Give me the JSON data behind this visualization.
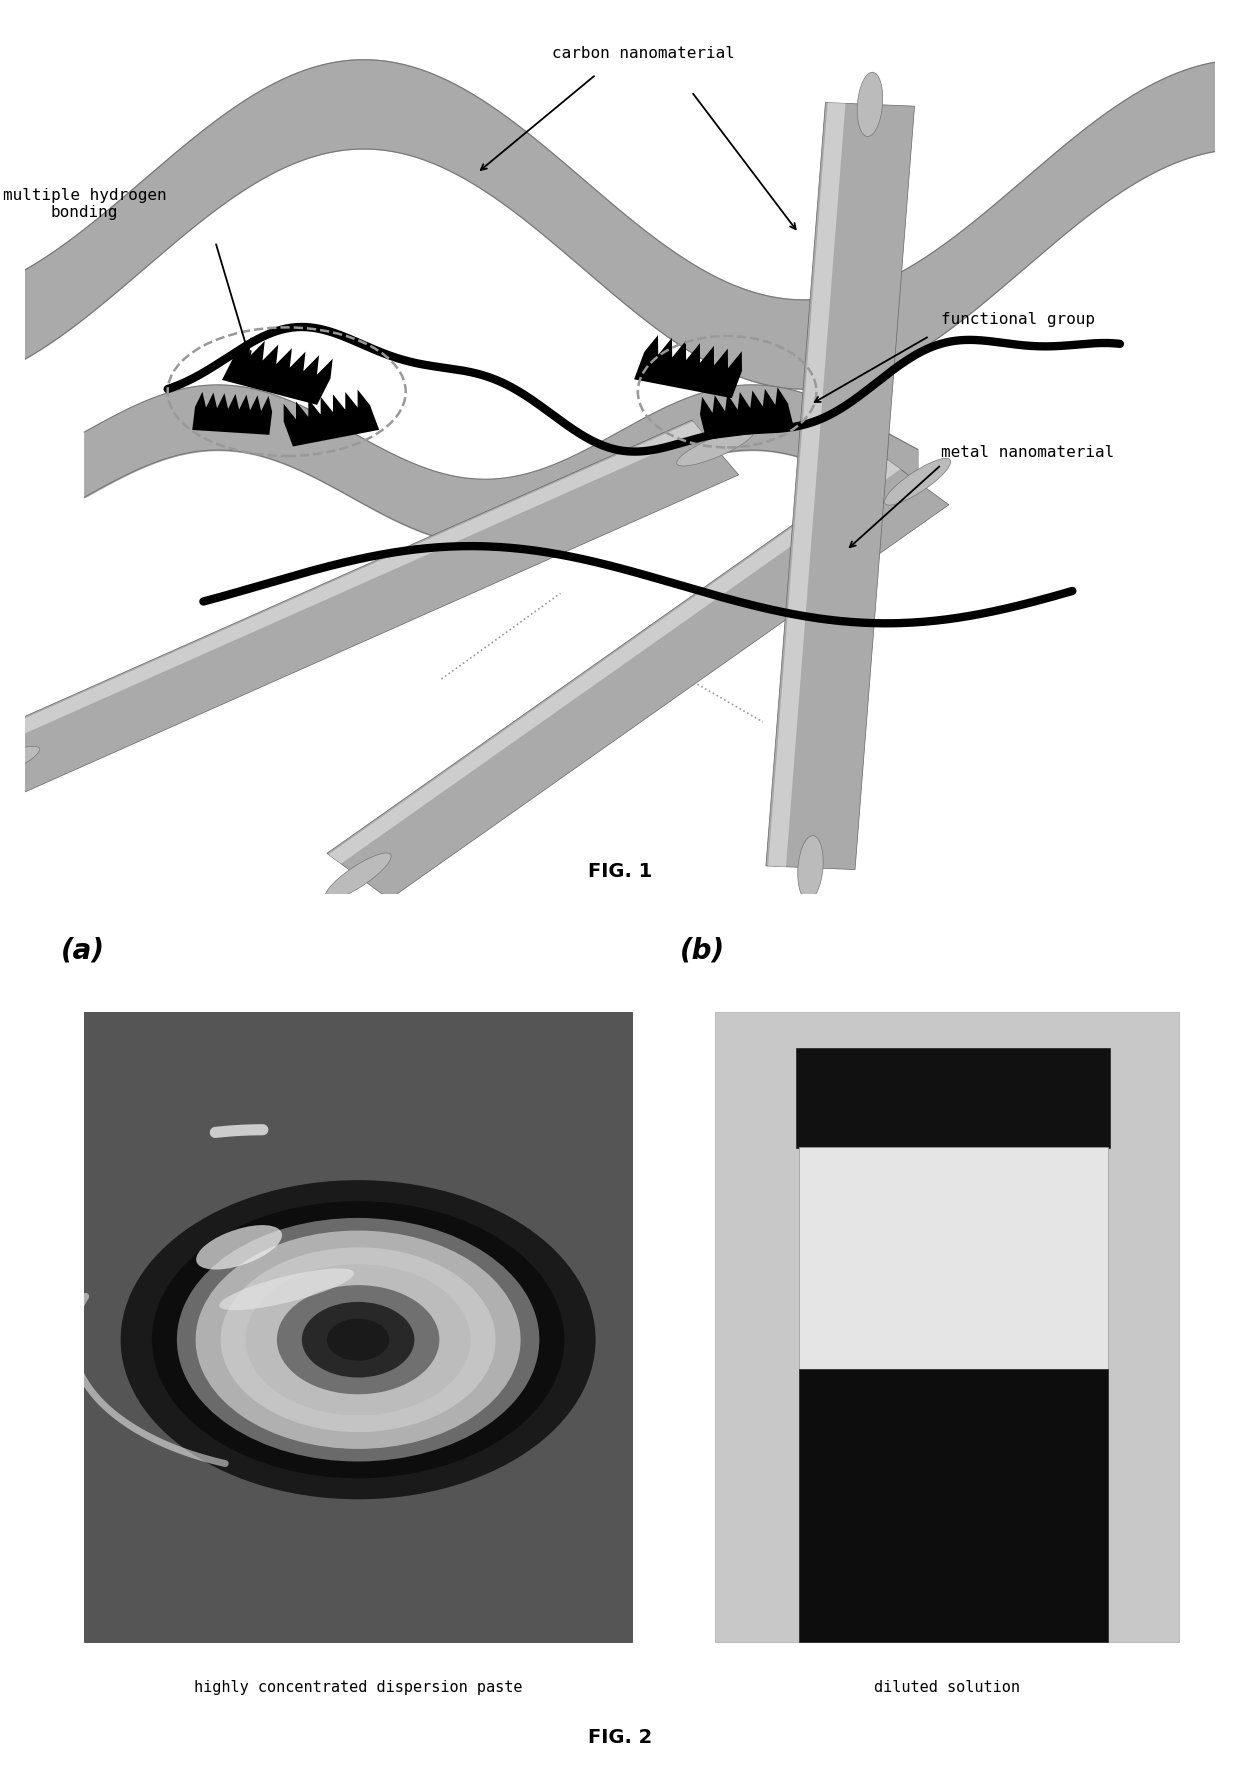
{
  "fig1_caption": "FIG. 1",
  "fig2_caption": "FIG. 2",
  "label_a": "(a)",
  "label_b": "(b)",
  "label_carbon": "carbon nanomaterial",
  "label_hydrogen": "multiple hydrogen\nbonding",
  "label_functional": "functional group",
  "label_metal": "metal nanomaterial",
  "label_paste": "highly concentrated dispersion paste",
  "label_diluted": "diluted solution",
  "background_color": "#ffffff"
}
